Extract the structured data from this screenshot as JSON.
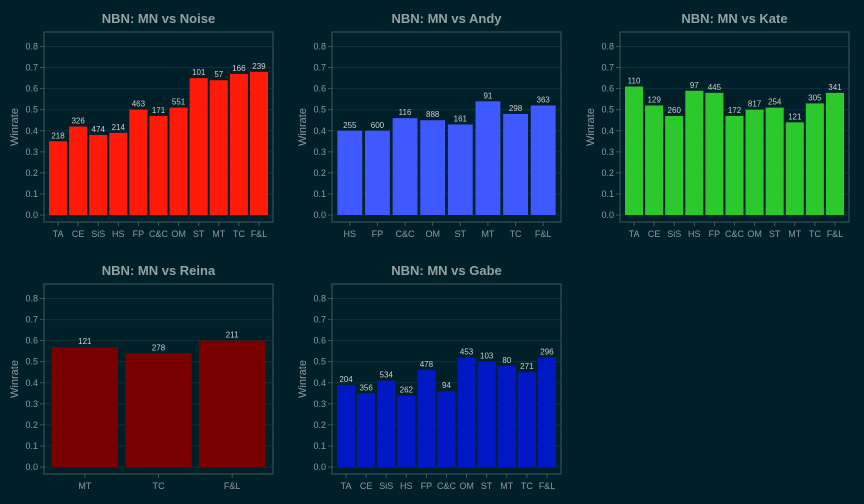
{
  "chart_data": [
    {
      "type": "bar",
      "title": "NBN: MN vs Noise",
      "ylabel": "Winrate",
      "xlabel": "",
      "ylim": [
        0,
        0.85
      ],
      "yticks": [
        "0.0",
        "0.1",
        "0.2",
        "0.3",
        "0.4",
        "0.5",
        "0.6",
        "0.7",
        "0.8"
      ],
      "grid": true,
      "color": "#ff1a0a",
      "categories": [
        "TA",
        "CE",
        "SiS",
        "HS",
        "FP",
        "C&C",
        "OM",
        "ST",
        "MT",
        "TC",
        "F&L"
      ],
      "values": [
        0.35,
        0.42,
        0.38,
        0.39,
        0.5,
        0.47,
        0.51,
        0.65,
        0.64,
        0.67,
        0.68
      ],
      "labels": [
        "218",
        "326",
        "474",
        "214",
        "463",
        "171",
        "551",
        "101",
        "57",
        "166",
        "239"
      ]
    },
    {
      "type": "bar",
      "title": "NBN: MN vs Andy",
      "ylabel": "Winrate",
      "xlabel": "",
      "ylim": [
        0,
        0.85
      ],
      "yticks": [
        "0.0",
        "0.1",
        "0.2",
        "0.3",
        "0.4",
        "0.5",
        "0.6",
        "0.7",
        "0.8"
      ],
      "grid": true,
      "color": "#3d59ff",
      "categories": [
        "HS",
        "FP",
        "C&C",
        "OM",
        "ST",
        "MT",
        "TC",
        "F&L"
      ],
      "values": [
        0.4,
        0.4,
        0.46,
        0.45,
        0.43,
        0.54,
        0.48,
        0.52
      ],
      "labels": [
        "255",
        "600",
        "116",
        "888",
        "161",
        "91",
        "298",
        "363"
      ]
    },
    {
      "type": "bar",
      "title": "NBN: MN vs Kate",
      "ylabel": "Winrate",
      "xlabel": "",
      "ylim": [
        0,
        0.85
      ],
      "yticks": [
        "0.0",
        "0.1",
        "0.2",
        "0.3",
        "0.4",
        "0.5",
        "0.6",
        "0.7",
        "0.8"
      ],
      "grid": true,
      "color": "#2bc92b",
      "categories": [
        "TA",
        "CE",
        "SiS",
        "HS",
        "FP",
        "C&C",
        "OM",
        "ST",
        "MT",
        "TC",
        "F&L"
      ],
      "values": [
        0.61,
        0.52,
        0.47,
        0.59,
        0.58,
        0.47,
        0.5,
        0.51,
        0.44,
        0.53,
        0.58
      ],
      "labels": [
        "110",
        "129",
        "260",
        "97",
        "445",
        "172",
        "817",
        "254",
        "121",
        "305",
        "341"
      ]
    },
    {
      "type": "bar",
      "title": "NBN: MN vs Reina",
      "ylabel": "Winrate",
      "xlabel": "",
      "ylim": [
        0,
        0.85
      ],
      "yticks": [
        "0.0",
        "0.1",
        "0.2",
        "0.3",
        "0.4",
        "0.5",
        "0.6",
        "0.7",
        "0.8"
      ],
      "grid": true,
      "color": "#7a0000",
      "categories": [
        "MT",
        "TC",
        "F&L"
      ],
      "values": [
        0.57,
        0.54,
        0.6
      ],
      "labels": [
        "121",
        "278",
        "211"
      ]
    },
    {
      "type": "bar",
      "title": "NBN: MN vs Gabe",
      "ylabel": "Winrate",
      "xlabel": "",
      "ylim": [
        0,
        0.85
      ],
      "yticks": [
        "0.0",
        "0.1",
        "0.2",
        "0.3",
        "0.4",
        "0.5",
        "0.6",
        "0.7",
        "0.8"
      ],
      "grid": true,
      "color": "#0019c4",
      "categories": [
        "TA",
        "CE",
        "SiS",
        "HS",
        "FP",
        "C&C",
        "OM",
        "ST",
        "MT",
        "TC",
        "F&L"
      ],
      "values": [
        0.39,
        0.35,
        0.41,
        0.34,
        0.46,
        0.36,
        0.52,
        0.5,
        0.48,
        0.45,
        0.52
      ],
      "labels": [
        "204",
        "356",
        "534",
        "262",
        "478",
        "94",
        "453",
        "103",
        "80",
        "271",
        "296"
      ]
    }
  ],
  "colors": {
    "background": "#002029",
    "frame": "#40595d",
    "grid": "#0e3138",
    "text": "#8c9b9d",
    "title": "#93a1a1",
    "bar_label": "#c8cfcf"
  }
}
